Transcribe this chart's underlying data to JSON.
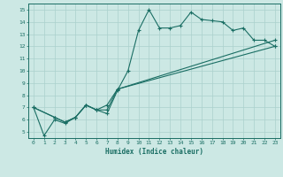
{
  "xlabel": "Humidex (Indice chaleur)",
  "bg_color": "#cce8e4",
  "line_color": "#1a6e64",
  "grid_color": "#aad0cc",
  "xlim": [
    -0.5,
    23.5
  ],
  "ylim": [
    4.5,
    15.5
  ],
  "xticks": [
    0,
    1,
    2,
    3,
    4,
    5,
    6,
    7,
    8,
    9,
    10,
    11,
    12,
    13,
    14,
    15,
    16,
    17,
    18,
    19,
    20,
    21,
    22,
    23
  ],
  "yticks": [
    5,
    6,
    7,
    8,
    9,
    10,
    11,
    12,
    13,
    14,
    15
  ],
  "series1_x": [
    0,
    1,
    2,
    3,
    4,
    5,
    6,
    7,
    8,
    9,
    10,
    11,
    12,
    13,
    14,
    15,
    16,
    17,
    18,
    19,
    20,
    21,
    22,
    23
  ],
  "series1_y": [
    7.0,
    4.7,
    6.0,
    5.7,
    6.2,
    7.2,
    6.8,
    6.5,
    8.4,
    10.0,
    13.3,
    15.0,
    13.5,
    13.5,
    13.7,
    14.8,
    14.2,
    14.1,
    14.0,
    13.3,
    13.5,
    12.5,
    12.5,
    12.0
  ],
  "series2_x": [
    0,
    2,
    3,
    4,
    5,
    6,
    7,
    8,
    23
  ],
  "series2_y": [
    7.0,
    6.2,
    5.8,
    6.2,
    7.2,
    6.8,
    6.8,
    8.5,
    12.0
  ],
  "series3_x": [
    0,
    2,
    3,
    4,
    5,
    6,
    7,
    8,
    23
  ],
  "series3_y": [
    7.0,
    6.2,
    5.8,
    6.2,
    7.2,
    6.8,
    7.2,
    8.5,
    12.5
  ]
}
